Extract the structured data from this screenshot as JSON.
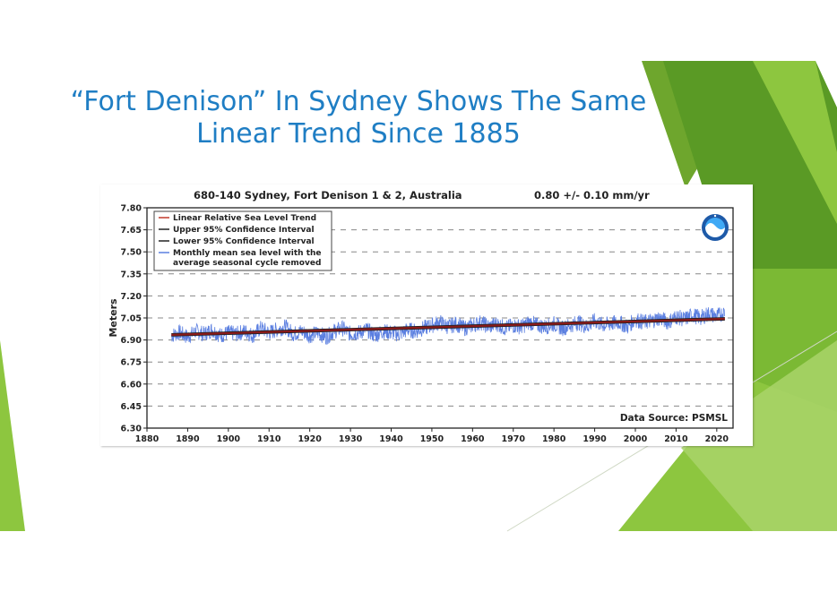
{
  "slide": {
    "title_line1": "“Fort Denison” In Sydney Shows The Same",
    "title_line2": "Linear Trend Since 1885",
    "accent_colors": [
      "#8dc63f",
      "#6ea62d",
      "#4f8a1f",
      "#a9d46a"
    ]
  },
  "chart_data": {
    "type": "line",
    "title": "680-140 Sydney, Fort Denison 1 & 2, Australia",
    "subtitle": "0.80 +/-  0.10 mm/yr",
    "xlabel": "",
    "ylabel": "Meters",
    "xlim": [
      1880,
      2024
    ],
    "ylim": [
      6.3,
      7.8
    ],
    "x_ticks": [
      1880,
      1890,
      1900,
      1910,
      1920,
      1930,
      1940,
      1950,
      1960,
      1970,
      1980,
      1990,
      2000,
      2010,
      2020
    ],
    "y_ticks": [
      "7.80",
      "7.65",
      "7.50",
      "7.35",
      "7.20",
      "7.05",
      "6.90",
      "6.75",
      "6.60",
      "6.45",
      "6.30"
    ],
    "grid": "horizontal dashed",
    "legend_position": "top-left",
    "annotation": "Data Source: PSMSL",
    "logo": "noaa-logo",
    "legend": [
      {
        "label": "Linear Relative Sea Level Trend",
        "color": "#c0392b"
      },
      {
        "label": "Upper 95% Confidence Interval",
        "color": "#222222"
      },
      {
        "label": "Lower 95% Confidence Interval",
        "color": "#222222"
      },
      {
        "label": "Monthly mean sea level with the",
        "label2": "average seasonal cycle removed",
        "color": "#5b7fe0"
      }
    ],
    "series": [
      {
        "name": "Linear Relative Sea Level Trend",
        "x": [
          1886,
          2022
        ],
        "y": [
          6.935,
          7.044
        ],
        "color": "#8b1a1a"
      },
      {
        "name": "Upper 95% Confidence Interval",
        "x": [
          1886,
          2022
        ],
        "y": [
          6.943,
          7.052
        ],
        "color": "#222222"
      },
      {
        "name": "Lower 95% Confidence Interval",
        "x": [
          1886,
          2022
        ],
        "y": [
          6.927,
          7.036
        ],
        "color": "#222222"
      },
      {
        "name": "Monthly mean sea level with the average seasonal cycle removed",
        "x": [
          1886,
          1888,
          1890,
          1892,
          1894,
          1896,
          1898,
          1900,
          1902,
          1904,
          1906,
          1908,
          1910,
          1912,
          1914,
          1916,
          1918,
          1920,
          1922,
          1924,
          1926,
          1928,
          1930,
          1932,
          1934,
          1936,
          1938,
          1940,
          1942,
          1944,
          1946,
          1948,
          1950,
          1952,
          1954,
          1956,
          1958,
          1960,
          1962,
          1964,
          1966,
          1968,
          1970,
          1972,
          1974,
          1976,
          1978,
          1980,
          1982,
          1984,
          1986,
          1988,
          1990,
          1992,
          1994,
          1996,
          1998,
          2000,
          2002,
          2004,
          2006,
          2008,
          2010,
          2012,
          2014,
          2016,
          2018,
          2020,
          2022
        ],
        "y": [
          6.93,
          6.95,
          6.92,
          6.96,
          6.94,
          6.97,
          6.93,
          6.95,
          6.94,
          6.96,
          6.93,
          6.98,
          6.95,
          6.97,
          6.99,
          6.94,
          6.96,
          6.93,
          6.95,
          6.92,
          6.96,
          6.98,
          6.94,
          6.95,
          6.97,
          6.93,
          6.96,
          6.95,
          6.94,
          6.97,
          6.96,
          6.98,
          7.0,
          7.02,
          6.99,
          7.01,
          6.98,
          7.0,
          7.02,
          6.99,
          7.01,
          6.98,
          7.0,
          6.99,
          7.02,
          7.0,
          6.99,
          7.01,
          6.98,
          7.0,
          7.02,
          6.99,
          7.03,
          7.0,
          7.01,
          7.02,
          6.99,
          7.04,
          7.02,
          7.03,
          7.05,
          7.02,
          7.06,
          7.04,
          7.07,
          7.05,
          7.08,
          7.06,
          7.09
        ],
        "color": "#5b7fe0"
      }
    ]
  }
}
